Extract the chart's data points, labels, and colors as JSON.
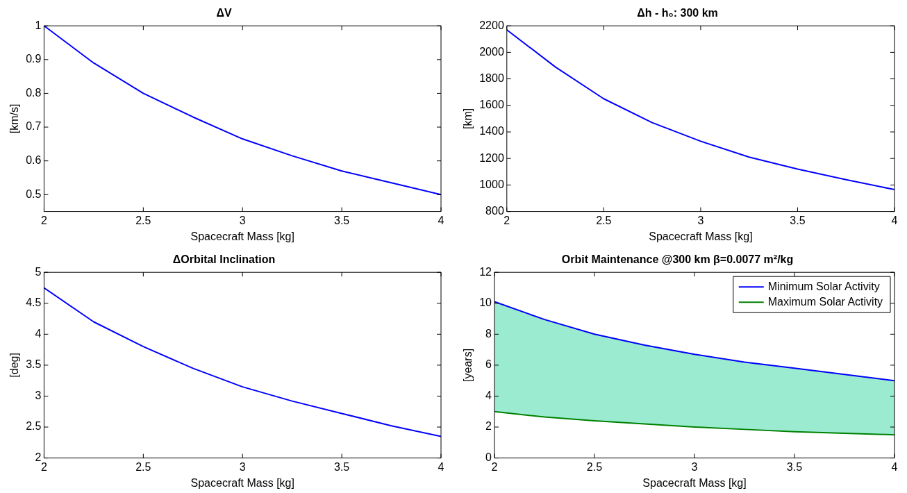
{
  "chart_data": [
    {
      "type": "line",
      "title": "ΔV",
      "xlabel": "Spacecraft Mass [kg]",
      "ylabel": "[km/s]",
      "x": [
        2,
        2.25,
        2.5,
        2.75,
        3,
        3.25,
        3.5,
        3.75,
        4
      ],
      "xlim": [
        2,
        4
      ],
      "xticks": [
        2,
        2.5,
        3,
        3.5,
        4
      ],
      "ylim": [
        0.45,
        1
      ],
      "yticks": [
        0.5,
        0.6,
        0.7,
        0.8,
        0.9,
        1
      ],
      "grid": false,
      "legend": false,
      "series": [
        {
          "color": "#0000ff",
          "values": [
            1,
            0.89,
            0.8,
            0.73,
            0.665,
            0.615,
            0.57,
            0.535,
            0.5
          ]
        }
      ]
    },
    {
      "type": "line",
      "title": "Δh - h₀: 300 km",
      "xlabel": "Spacecraft Mass [kg]",
      "ylabel": "[km]",
      "x": [
        2,
        2.25,
        2.5,
        2.75,
        3,
        3.25,
        3.5,
        3.75,
        4
      ],
      "xlim": [
        2,
        4
      ],
      "xticks": [
        2,
        2.5,
        3,
        3.5,
        4
      ],
      "ylim": [
        800,
        2200
      ],
      "yticks": [
        800,
        1000,
        1200,
        1400,
        1600,
        1800,
        2000,
        2200
      ],
      "grid": false,
      "legend": false,
      "series": [
        {
          "color": "#0000ff",
          "values": [
            2170,
            1890,
            1650,
            1470,
            1330,
            1210,
            1120,
            1040,
            965
          ]
        }
      ]
    },
    {
      "type": "line",
      "title": "ΔOrbital Inclination",
      "xlabel": "Spacecraft Mass [kg]",
      "ylabel": "[deg]",
      "x": [
        2,
        2.25,
        2.5,
        2.75,
        3,
        3.25,
        3.5,
        3.75,
        4
      ],
      "xlim": [
        2,
        4
      ],
      "xticks": [
        2,
        2.5,
        3,
        3.5,
        4
      ],
      "ylim": [
        2,
        5
      ],
      "yticks": [
        2,
        2.5,
        3,
        3.5,
        4,
        4.5,
        5
      ],
      "grid": false,
      "legend": false,
      "series": [
        {
          "color": "#0000ff",
          "values": [
            4.75,
            4.2,
            3.8,
            3.45,
            3.15,
            2.92,
            2.72,
            2.52,
            2.35
          ]
        }
      ]
    },
    {
      "type": "line",
      "title": "Orbit Maintenance @300 km β=0.0077 m²/kg",
      "xlabel": "Spacecraft Mass [kg]",
      "ylabel": "[years]",
      "x": [
        2,
        2.25,
        2.5,
        2.75,
        3,
        3.25,
        3.5,
        3.75,
        4
      ],
      "xlim": [
        2,
        4
      ],
      "xticks": [
        2,
        2.5,
        3,
        3.5,
        4
      ],
      "ylim": [
        0,
        12
      ],
      "yticks": [
        0,
        2,
        4,
        6,
        8,
        10,
        12
      ],
      "grid": false,
      "legend": "top right",
      "series": [
        {
          "name": "Minimum Solar Activity",
          "color": "#0000ff",
          "values": [
            10.1,
            8.95,
            8,
            7.3,
            6.7,
            6.2,
            5.8,
            5.4,
            5
          ],
          "lower": [
            3,
            2.65,
            2.4,
            2.2,
            2,
            1.85,
            1.7,
            1.6,
            1.5
          ],
          "upper": [
            10.1,
            8.95,
            8,
            7.3,
            6.7,
            6.2,
            5.8,
            5.4,
            5
          ]
        },
        {
          "name": "Maximum Solar Activity",
          "color": "#008000",
          "values": [
            3,
            2.65,
            2.4,
            2.2,
            2,
            1.85,
            1.7,
            1.6,
            1.5
          ]
        }
      ]
    }
  ]
}
